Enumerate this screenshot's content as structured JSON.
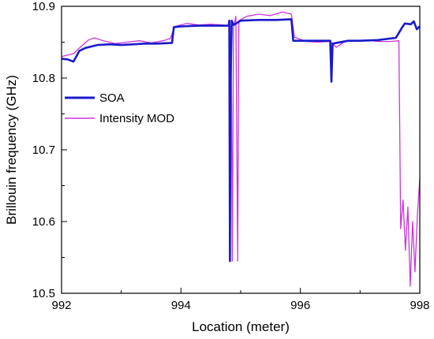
{
  "chart_data": {
    "type": "line",
    "xlabel": "Location (meter)",
    "ylabel": "Brillouin frequency (GHz)",
    "xlim": [
      992,
      998
    ],
    "ylim": [
      10.5,
      10.9
    ],
    "x_ticks": [
      992,
      994,
      996,
      998
    ],
    "y_ticks": [
      10.5,
      10.6,
      10.7,
      10.8,
      10.9
    ],
    "x_tick_labels": [
      "992",
      "994",
      "996",
      "998"
    ],
    "y_tick_labels": [
      "10.5",
      "10.6",
      "10.7",
      "10.8",
      "10.9"
    ],
    "legend_position": "upper-left",
    "grid": false,
    "series": [
      {
        "name": "SOA",
        "color": "#1a1acc",
        "points": [
          [
            992.0,
            10.827
          ],
          [
            992.1,
            10.826
          ],
          [
            992.2,
            10.823
          ],
          [
            992.3,
            10.838
          ],
          [
            992.4,
            10.842
          ],
          [
            992.6,
            10.846
          ],
          [
            992.8,
            10.847
          ],
          [
            993.0,
            10.846
          ],
          [
            993.2,
            10.847
          ],
          [
            993.4,
            10.848
          ],
          [
            993.6,
            10.848
          ],
          [
            993.85,
            10.849
          ],
          [
            993.88,
            10.871
          ],
          [
            994.0,
            10.872
          ],
          [
            994.3,
            10.873
          ],
          [
            994.6,
            10.873
          ],
          [
            994.8,
            10.873
          ],
          [
            994.81,
            10.88
          ],
          [
            994.82,
            10.545
          ],
          [
            994.83,
            10.79
          ],
          [
            994.85,
            10.88
          ],
          [
            994.88,
            10.874
          ],
          [
            995.0,
            10.88
          ],
          [
            995.3,
            10.881
          ],
          [
            995.6,
            10.881
          ],
          [
            995.85,
            10.882
          ],
          [
            995.88,
            10.852
          ],
          [
            996.0,
            10.852
          ],
          [
            996.3,
            10.852
          ],
          [
            996.5,
            10.852
          ],
          [
            996.52,
            10.795
          ],
          [
            996.54,
            10.848
          ],
          [
            996.8,
            10.852
          ],
          [
            997.0,
            10.852
          ],
          [
            997.3,
            10.853
          ],
          [
            997.6,
            10.856
          ],
          [
            997.7,
            10.87
          ],
          [
            997.75,
            10.876
          ],
          [
            997.85,
            10.875
          ],
          [
            997.9,
            10.879
          ],
          [
            997.95,
            10.868
          ],
          [
            998.0,
            10.872
          ]
        ]
      },
      {
        "name": "Intensity MOD",
        "color": "#cc33dd",
        "points": [
          [
            992.0,
            10.83
          ],
          [
            992.1,
            10.832
          ],
          [
            992.2,
            10.834
          ],
          [
            992.3,
            10.842
          ],
          [
            992.45,
            10.853
          ],
          [
            992.55,
            10.856
          ],
          [
            992.7,
            10.852
          ],
          [
            992.9,
            10.848
          ],
          [
            993.1,
            10.85
          ],
          [
            993.3,
            10.852
          ],
          [
            993.5,
            10.849
          ],
          [
            993.7,
            10.852
          ],
          [
            993.82,
            10.855
          ],
          [
            993.9,
            10.872
          ],
          [
            994.1,
            10.876
          ],
          [
            994.3,
            10.874
          ],
          [
            994.5,
            10.875
          ],
          [
            994.7,
            10.874
          ],
          [
            994.84,
            10.872
          ],
          [
            994.86,
            10.545
          ],
          [
            994.88,
            10.87
          ],
          [
            994.92,
            10.886
          ],
          [
            994.95,
            10.545
          ],
          [
            994.97,
            10.88
          ],
          [
            995.1,
            10.886
          ],
          [
            995.3,
            10.889
          ],
          [
            995.5,
            10.887
          ],
          [
            995.7,
            10.892
          ],
          [
            995.85,
            10.889
          ],
          [
            995.9,
            10.857
          ],
          [
            996.1,
            10.851
          ],
          [
            996.3,
            10.85
          ],
          [
            996.5,
            10.851
          ],
          [
            996.6,
            10.843
          ],
          [
            996.75,
            10.851
          ],
          [
            996.9,
            10.852
          ],
          [
            997.1,
            10.853
          ],
          [
            997.3,
            10.851
          ],
          [
            997.5,
            10.851
          ],
          [
            997.65,
            10.852
          ],
          [
            997.68,
            10.59
          ],
          [
            997.72,
            10.63
          ],
          [
            997.76,
            10.56
          ],
          [
            997.8,
            10.62
          ],
          [
            997.84,
            10.51
          ],
          [
            997.88,
            10.6
          ],
          [
            997.92,
            10.53
          ],
          [
            997.96,
            10.61
          ],
          [
            998.0,
            10.66
          ]
        ]
      }
    ]
  }
}
